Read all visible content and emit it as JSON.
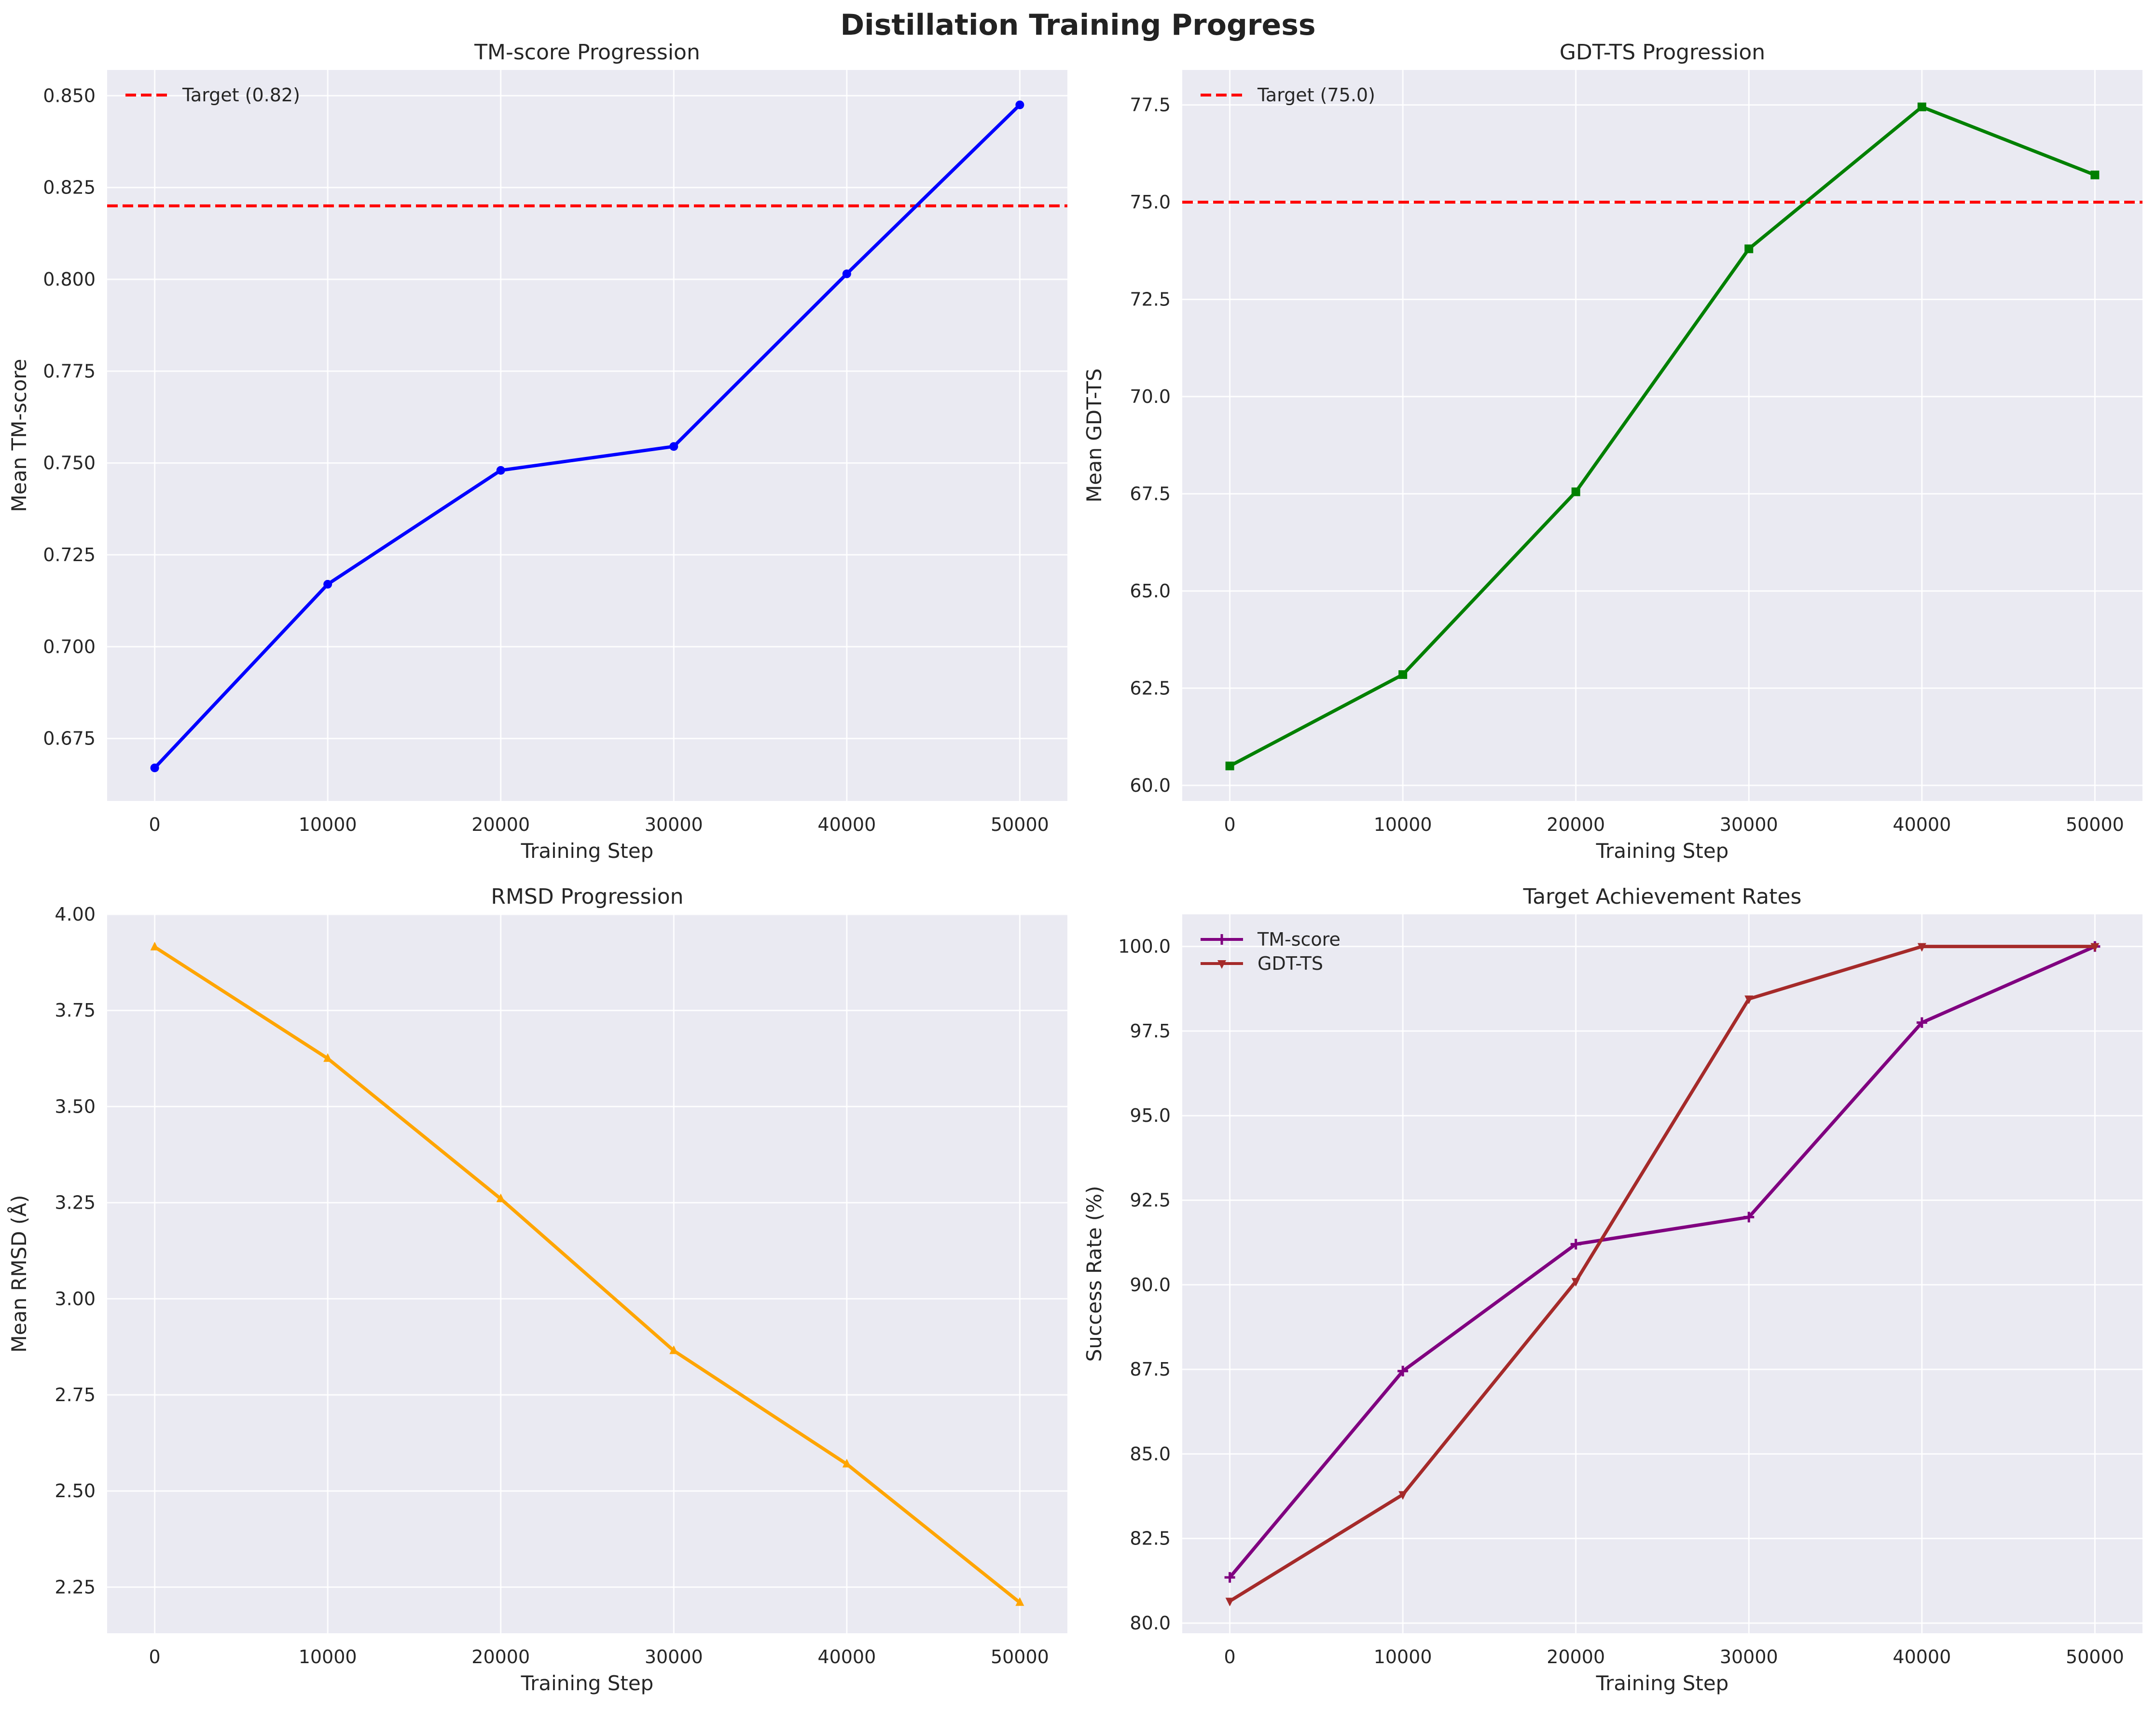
{
  "figure": {
    "suptitle": "Distillation Training Progress"
  },
  "chart_data": [
    {
      "type": "line",
      "title": "TM-score Progression",
      "xlabel": "Training Step",
      "ylabel": "Mean TM-score",
      "x": [
        0,
        10000,
        20000,
        30000,
        40000,
        50000
      ],
      "xlim": [
        -2750,
        52750
      ],
      "ylim": [
        0.658,
        0.857
      ],
      "xticks": [
        0,
        10000,
        20000,
        30000,
        40000,
        50000
      ],
      "yticks": [
        0.675,
        0.7,
        0.725,
        0.75,
        0.775,
        0.8,
        0.825,
        0.85
      ],
      "ytick_decimals": 3,
      "grid": true,
      "legend_position": "upper-left",
      "series": [
        {
          "name": "",
          "values": [
            0.667,
            0.717,
            0.748,
            0.7545,
            0.8015,
            0.8475
          ],
          "color": "#0000ff",
          "marker": "circle"
        }
      ],
      "reference_lines": [
        {
          "name": "Target (0.82)",
          "y": 0.82,
          "color": "#ff0000",
          "style": "dashed"
        }
      ]
    },
    {
      "type": "line",
      "title": "GDT-TS Progression",
      "xlabel": "Training Step",
      "ylabel": "Mean GDT-TS",
      "x": [
        0,
        10000,
        20000,
        30000,
        40000,
        50000
      ],
      "xlim": [
        -2750,
        52750
      ],
      "ylim": [
        59.6,
        78.4
      ],
      "xticks": [
        0,
        10000,
        20000,
        30000,
        40000,
        50000
      ],
      "yticks": [
        60.0,
        62.5,
        65.0,
        67.5,
        70.0,
        72.5,
        75.0,
        77.5
      ],
      "ytick_decimals": 1,
      "grid": true,
      "legend_position": "upper-left",
      "series": [
        {
          "name": "",
          "values": [
            60.5,
            62.85,
            67.55,
            73.8,
            77.45,
            75.7
          ],
          "color": "#008000",
          "marker": "square"
        }
      ],
      "reference_lines": [
        {
          "name": "Target (75.0)",
          "y": 75.0,
          "color": "#ff0000",
          "style": "dashed"
        }
      ]
    },
    {
      "type": "line",
      "title": "RMSD Progression",
      "xlabel": "Training Step",
      "ylabel": "Mean RMSD (Å)",
      "x": [
        0,
        10000,
        20000,
        30000,
        40000,
        50000
      ],
      "xlim": [
        -2750,
        52750
      ],
      "ylim": [
        2.13,
        4.0
      ],
      "xticks": [
        0,
        10000,
        20000,
        30000,
        40000,
        50000
      ],
      "yticks": [
        2.25,
        2.5,
        2.75,
        3.0,
        3.25,
        3.5,
        3.75,
        4.0
      ],
      "ytick_decimals": 2,
      "grid": true,
      "legend_position": "none",
      "series": [
        {
          "name": "",
          "values": [
            3.915,
            3.625,
            3.26,
            2.865,
            2.57,
            2.21
          ],
          "color": "#ffa500",
          "marker": "triangle"
        }
      ],
      "reference_lines": []
    },
    {
      "type": "line",
      "title": "Target Achievement Rates",
      "xlabel": "Training Step",
      "ylabel": "Success Rate (%)",
      "x": [
        0,
        10000,
        20000,
        30000,
        40000,
        50000
      ],
      "xlim": [
        -2750,
        52750
      ],
      "ylim": [
        79.7,
        100.95
      ],
      "xticks": [
        0,
        10000,
        20000,
        30000,
        40000,
        50000
      ],
      "yticks": [
        80.0,
        82.5,
        85.0,
        87.5,
        90.0,
        92.5,
        95.0,
        97.5,
        100.0
      ],
      "ytick_decimals": 1,
      "grid": true,
      "legend_position": "upper-left",
      "series": [
        {
          "name": "TM-score",
          "values": [
            81.35,
            87.45,
            91.2,
            92.0,
            97.75,
            100.0
          ],
          "color": "#800080",
          "marker": "plus"
        },
        {
          "name": "GDT-TS",
          "values": [
            80.65,
            83.8,
            90.1,
            98.45,
            100.0,
            100.0
          ],
          "color": "#a52a2a",
          "marker": "triangle-down"
        }
      ],
      "reference_lines": []
    }
  ]
}
